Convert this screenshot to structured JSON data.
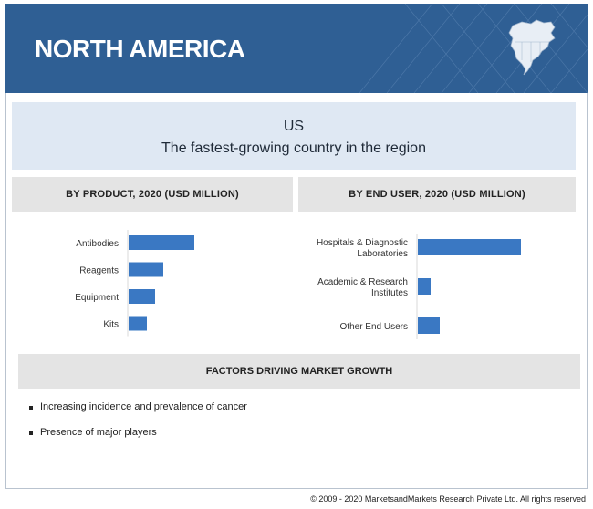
{
  "header": {
    "title": "NORTH AMERICA",
    "map_icon": "north-america-map-icon"
  },
  "highlight": {
    "country": "US",
    "subtitle": "The fastest-growing country in the region"
  },
  "colors": {
    "header_bg": "#2f5f94",
    "bar": "#3a78c3",
    "highlight_bg": "#dfe8f3",
    "section_bg": "#e4e4e4"
  },
  "chart_data": [
    {
      "type": "bar",
      "orientation": "horizontal",
      "title": "BY PRODUCT, 2020 (USD MILLION)",
      "categories": [
        "Antibodies",
        "Reagents",
        "Equipment",
        "Kits"
      ],
      "values": [
        72,
        38,
        29,
        20
      ],
      "axis_labels_shown": false,
      "grid": false
    },
    {
      "type": "bar",
      "orientation": "horizontal",
      "title": "BY END USER, 2020 (USD MILLION)",
      "categories": [
        [
          "Hospitals & Diagnostic",
          "Laboratories"
        ],
        [
          "Academic & Research",
          "Institutes"
        ],
        [
          "Other End Users"
        ]
      ],
      "values": [
        113,
        14,
        24
      ],
      "axis_labels_shown": false,
      "grid": false
    }
  ],
  "factors": {
    "title": "FACTORS DRIVING MARKET GROWTH",
    "items": [
      "Increasing incidence and prevalence of cancer",
      "Presence of major players"
    ]
  },
  "footer": {
    "copyright": "© 2009 - 2020 MarketsandMarkets Research Private Ltd. All rights reserved"
  }
}
